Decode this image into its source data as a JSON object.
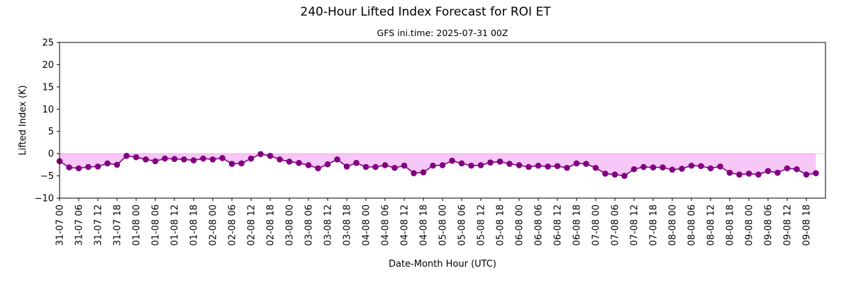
{
  "chart_data": {
    "type": "line",
    "title": "240-Hour Lifted Index Forecast for ROI ET",
    "subtitle": "GFS ini.time: 2025-07-31 00Z",
    "xlabel": "Date-Month Hour (UTC)",
    "ylabel": "Lifted Index (K)",
    "ylim": [
      -10,
      25
    ],
    "yticks": [
      -10,
      -5,
      0,
      5,
      10,
      15,
      20,
      25
    ],
    "xlim": [
      0,
      240
    ],
    "x_step_hours": 3,
    "xtick_labels": [
      "31-07 00",
      "31-07 06",
      "31-07 12",
      "31-07 18",
      "01-08 00",
      "01-08 06",
      "01-08 12",
      "01-08 18",
      "02-08 00",
      "02-08 06",
      "02-08 12",
      "02-08 18",
      "03-08 00",
      "03-08 06",
      "03-08 12",
      "03-08 18",
      "04-08 00",
      "04-08 06",
      "04-08 12",
      "04-08 18",
      "05-08 00",
      "05-08 06",
      "05-08 12",
      "05-08 18",
      "06-08 00",
      "06-08 06",
      "06-08 12",
      "06-08 18",
      "07-08 00",
      "07-08 06",
      "07-08 12",
      "07-08 18",
      "08-08 00",
      "08-08 06",
      "08-08 12",
      "08-08 18",
      "09-08 00",
      "09-08 06",
      "09-08 12",
      "09-08 18"
    ],
    "fill_below_zero": true,
    "grid": false,
    "colors": {
      "line": "#800080",
      "fill": "#ee82ee"
    },
    "series": [
      {
        "values": [
          -1.7,
          -3.1,
          -3.3,
          -3.0,
          -2.9,
          -2.2,
          -2.5,
          -0.5,
          -0.8,
          -1.3,
          -1.7,
          -1.1,
          -1.2,
          -1.3,
          -1.5,
          -1.1,
          -1.3,
          -1.0,
          -2.3,
          -2.2,
          -1.1,
          -0.1,
          -0.5,
          -1.3,
          -1.8,
          -2.1,
          -2.6,
          -3.3,
          -2.4,
          -1.3,
          -2.9,
          -2.1,
          -3.0,
          -3.0,
          -2.6,
          -3.2,
          -2.7,
          -4.4,
          -4.2,
          -2.7,
          -2.6,
          -1.6,
          -2.2,
          -2.7,
          -2.6,
          -2.0,
          -1.8,
          -2.3,
          -2.6,
          -3.0,
          -2.7,
          -2.9,
          -2.8,
          -3.2,
          -2.2,
          -2.3,
          -3.2,
          -4.5,
          -4.7,
          -5.0,
          -3.5,
          -3.0,
          -3.1,
          -3.1,
          -3.6,
          -3.4,
          -2.7,
          -2.8,
          -3.3,
          -2.9,
          -4.3,
          -4.7,
          -4.5,
          -4.7,
          -3.9,
          -4.3,
          -3.3,
          -3.5,
          -4.7,
          -4.4
        ]
      }
    ]
  }
}
